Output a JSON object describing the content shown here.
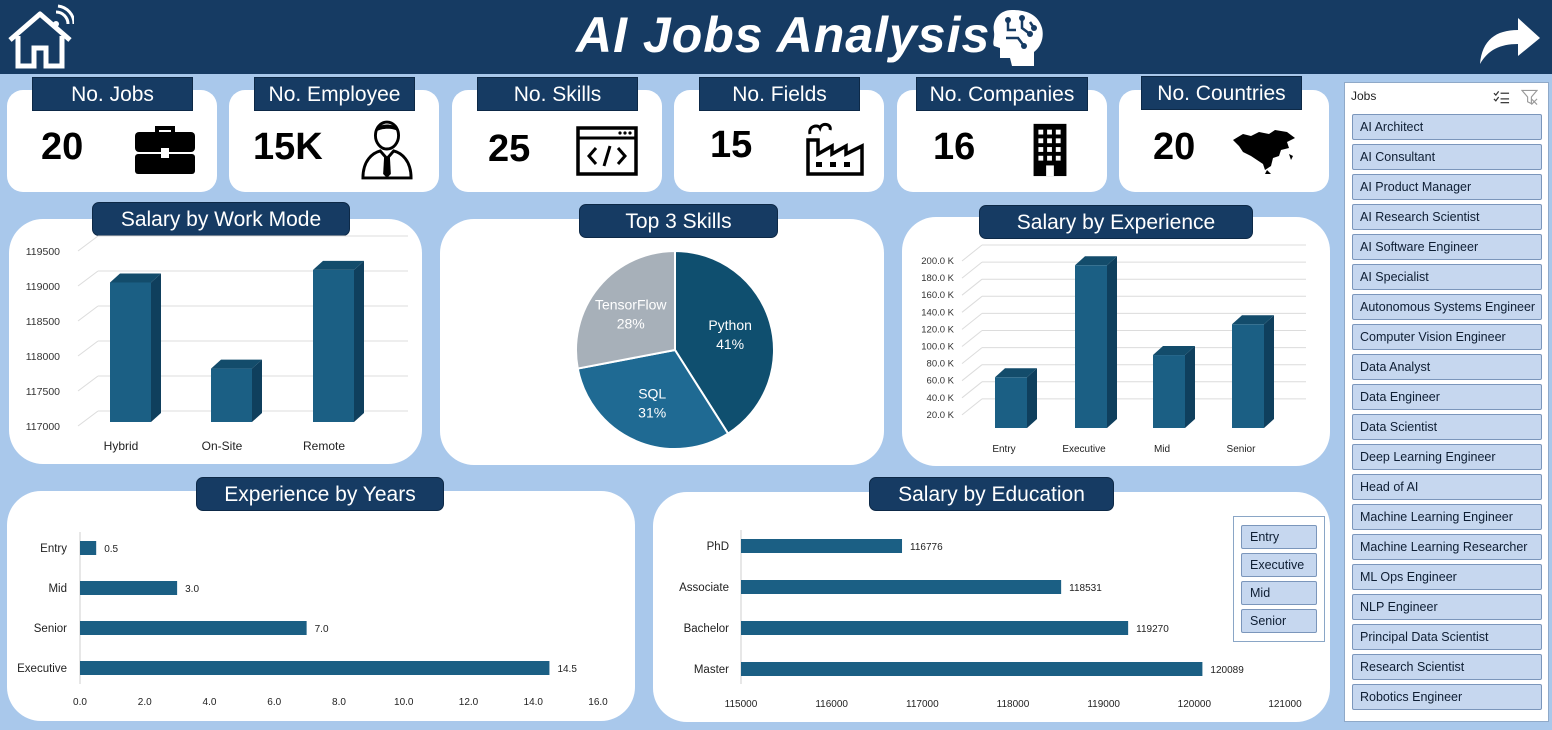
{
  "header": {
    "title": "AI Jobs Analysis"
  },
  "kpis": [
    {
      "label": "No. Jobs",
      "value": "20",
      "icon": "briefcase-icon"
    },
    {
      "label": "No. Employee",
      "value": "15K",
      "icon": "employee-icon"
    },
    {
      "label": "No. Skills",
      "value": "25",
      "icon": "code-icon"
    },
    {
      "label": "No. Fields",
      "value": "15",
      "icon": "factory-icon"
    },
    {
      "label": "No. Companies",
      "value": "16",
      "icon": "building-icon"
    },
    {
      "label": "No. Countries",
      "value": "20",
      "icon": "map-icon"
    }
  ],
  "charts": {
    "work_mode": {
      "title": "Salary by Work Mode",
      "chart_data": {
        "type": "bar",
        "categories": [
          "Hybrid",
          "On-Site",
          "Remote"
        ],
        "values": [
          119050,
          117820,
          119230
        ],
        "ylim": [
          117000,
          119500
        ],
        "ticks": [
          "117000",
          "117500",
          "118000",
          "118500",
          "119000",
          "119500"
        ]
      }
    },
    "skills": {
      "title": "Top 3 Skills",
      "chart_data": {
        "type": "pie",
        "slices": [
          {
            "label": "Python",
            "pct": "41%",
            "value": 41
          },
          {
            "label": "SQL",
            "pct": "31%",
            "value": 31
          },
          {
            "label": "TensorFlow",
            "pct": "28%",
            "value": 28
          }
        ]
      }
    },
    "experience_salary": {
      "title": "Salary by Experience",
      "chart_data": {
        "type": "bar",
        "categories": [
          "Entry",
          "Executive",
          "Mid",
          "Senior"
        ],
        "values": [
          64000,
          195000,
          90000,
          126000
        ],
        "ylim": [
          0,
          200000
        ],
        "ticks": [
          "20.0 K",
          "40.0 K",
          "60.0 K",
          "80.0 K",
          "100.0 K",
          "120.0 K",
          "140.0 K",
          "160.0 K",
          "180.0 K",
          "200.0 K"
        ]
      }
    },
    "experience_years": {
      "title": "Experience by Years",
      "chart_data": {
        "type": "bar",
        "categories": [
          "Entry",
          "Mid",
          "Senior",
          "Executive"
        ],
        "values": [
          0.5,
          3.0,
          7.0,
          14.5
        ],
        "labels": [
          "0.5",
          "3.0",
          "7.0",
          "14.5"
        ],
        "xlim": [
          0,
          16
        ],
        "ticks": [
          "0.0",
          "2.0",
          "4.0",
          "6.0",
          "8.0",
          "10.0",
          "12.0",
          "14.0",
          "16.0"
        ]
      }
    },
    "education": {
      "title": "Salary by Education",
      "chart_data": {
        "type": "bar",
        "categories": [
          "PhD",
          "Associate",
          "Bachelor",
          "Master"
        ],
        "values": [
          116776,
          118531,
          119270,
          120089
        ],
        "labels": [
          "116776",
          "118531",
          "119270",
          "120089"
        ],
        "xlim": [
          115000,
          121000
        ],
        "ticks": [
          "115000",
          "116000",
          "117000",
          "118000",
          "119000",
          "120000",
          "121000"
        ]
      },
      "legend": [
        "Entry",
        "Executive",
        "Mid",
        "Senior"
      ]
    }
  },
  "slicer": {
    "title": "Jobs",
    "items": [
      "AI Architect",
      "AI Consultant",
      "AI Product Manager",
      "AI Research Scientist",
      "AI Software Engineer",
      "AI Specialist",
      "Autonomous Systems Engineer",
      "Computer Vision Engineer",
      "Data Analyst",
      "Data Engineer",
      "Data Scientist",
      "Deep Learning Engineer",
      "Head of AI",
      "Machine Learning Engineer",
      "Machine Learning Researcher",
      "ML Ops Engineer",
      "NLP Engineer",
      "Principal Data Scientist",
      "Research Scientist",
      "Robotics Engineer"
    ]
  },
  "colors": {
    "navy": "#163b63",
    "bar": "#1b5f84",
    "bar_dark": "#0f3f5d",
    "bar_top": "#134c6b",
    "pie_python": "#0f4f6f",
    "pie_sql": "#1f6a93",
    "pie_tf": "#a7b0b9"
  }
}
